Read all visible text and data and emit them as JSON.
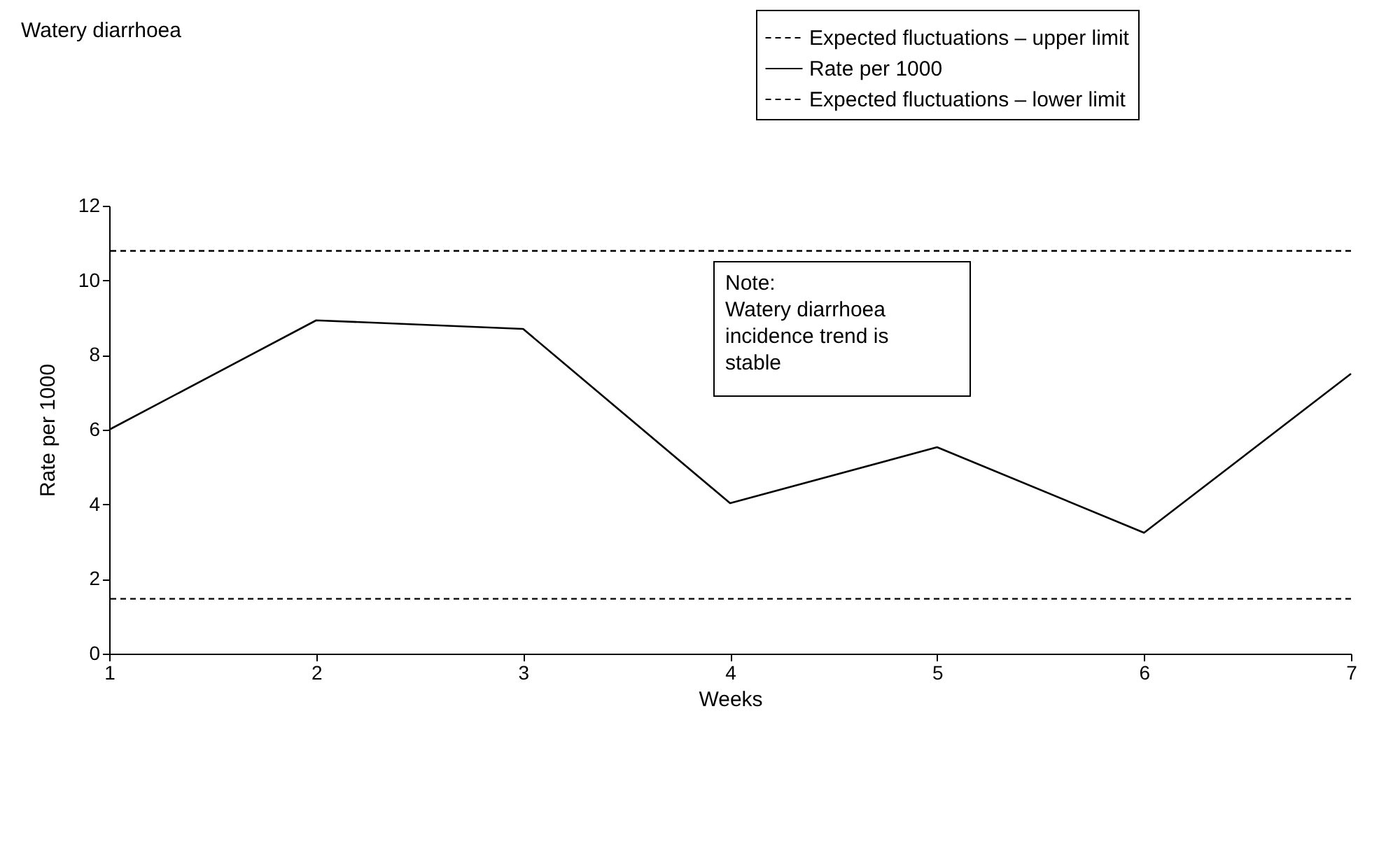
{
  "chart_data": {
    "type": "line",
    "title": "Watery diarrhoea",
    "xlabel": "Weeks",
    "ylabel": "Rate per 1000",
    "x": [
      1,
      2,
      3,
      4,
      5,
      6,
      7
    ],
    "series": [
      {
        "name": "Rate per 1000",
        "color": "#000000",
        "values": [
          6.0,
          8.93,
          8.7,
          4.03,
          5.53,
          3.24,
          7.5
        ]
      }
    ],
    "ref_lines": [
      {
        "axis": "y",
        "value": 10.79,
        "label": "Expected fluctuations – upper limit",
        "color": "#000000",
        "line_style": "dashed"
      },
      {
        "axis": "y",
        "value": 1.47,
        "label": "Expected fluctuations – lower limit",
        "color": "#000000",
        "line_style": "dashed"
      }
    ],
    "annotations": [
      "Note:\nWatery diarrhoea\nincidence trend is\nstable"
    ],
    "xlim": [
      1,
      7
    ],
    "ylim": [
      0,
      12
    ],
    "xticks": [
      1,
      2,
      3,
      4,
      5,
      6,
      7
    ],
    "yticks": [
      0,
      2,
      4,
      6,
      8,
      10,
      12
    ],
    "grid": false,
    "legend": "top right",
    "marker": "none",
    "line_style": "solid"
  }
}
